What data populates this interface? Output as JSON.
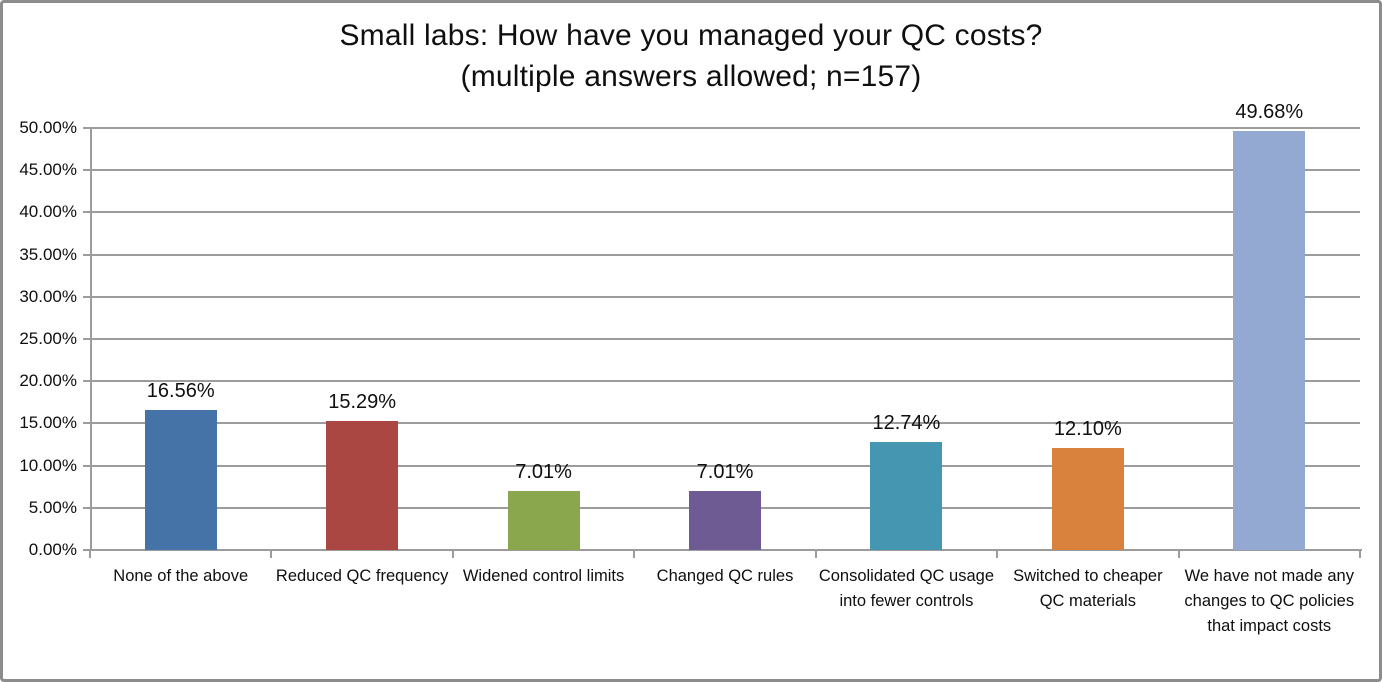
{
  "frame": {
    "background": "#FFFFFF",
    "border_color": "#8C8C8C"
  },
  "chart_data": {
    "type": "bar",
    "title": "Small labs: How have you managed your QC costs?",
    "subtitle": "(multiple answers allowed; n=157)",
    "categories": [
      "None of the above",
      "Reduced QC frequency",
      "Widened control limits",
      "Changed QC rules",
      "Consolidated QC usage into fewer controls",
      "Switched to cheaper QC materials",
      "We have not made any changes to QC policies that impact costs"
    ],
    "values": [
      16.56,
      15.29,
      7.01,
      7.01,
      12.74,
      12.1,
      49.68
    ],
    "value_labels": [
      "16.56%",
      "15.29%",
      "7.01%",
      "7.01%",
      "12.74%",
      "12.10%",
      "49.68%"
    ],
    "bar_colors": [
      "#4573A7",
      "#AA4743",
      "#8AA74E",
      "#6F5B93",
      "#4597B1",
      "#D8823E",
      "#93A9D2"
    ],
    "ylim": [
      0,
      50
    ],
    "ytick_step": 5,
    "ytick_labels": [
      "0.00%",
      "5.00%",
      "10.00%",
      "15.00%",
      "20.00%",
      "25.00%",
      "30.00%",
      "35.00%",
      "40.00%",
      "45.00%",
      "50.00%"
    ],
    "xlabel": "",
    "ylabel": "",
    "grid": true,
    "legend": false,
    "gridline_color": "#9C9C9C",
    "axis_color": "#9C9C9C",
    "text_color": "#0F0F0F"
  }
}
